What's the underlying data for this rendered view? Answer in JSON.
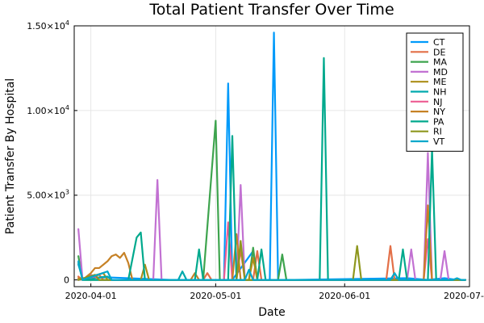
{
  "chart_data": {
    "type": "line",
    "title": "Total Patient Transfer Over Time",
    "xlabel": "Date",
    "ylabel": "Patient Transfer By Hospital",
    "x_start": "2020-03-29",
    "x_end": "2020-06-30",
    "xlim": [
      "2020-03-28",
      "2020-07-01"
    ],
    "ylim": [
      -400,
      15000
    ],
    "x_ticks": [
      {
        "date": "2020-04-01",
        "label": "2020-04-01"
      },
      {
        "date": "2020-05-01",
        "label": "2020-05-01"
      },
      {
        "date": "2020-06-01",
        "label": "2020-06-01"
      },
      {
        "date": "2020-07-01",
        "label": "2020-07-01"
      }
    ],
    "y_ticks": [
      {
        "value": 0,
        "label": "0",
        "has_exp": false
      },
      {
        "value": 5000,
        "label": "5.00×10",
        "exp": "3",
        "has_exp": true
      },
      {
        "value": 10000,
        "label": "1.00×10",
        "exp": "4",
        "has_exp": true
      },
      {
        "value": 15000,
        "label": "1.50×10",
        "exp": "4",
        "has_exp": true
      }
    ],
    "grid": true,
    "legend_position": "top-right",
    "series": [
      {
        "name": "CT",
        "color": "#009AFA",
        "points": [
          [
            "2020-03-29",
            900
          ],
          [
            "2020-03-30",
            100
          ],
          [
            "2020-04-05",
            150
          ],
          [
            "2020-04-20",
            0
          ],
          [
            "2020-05-03",
            0
          ],
          [
            "2020-05-04",
            11600
          ],
          [
            "2020-05-05",
            0
          ],
          [
            "2020-05-10",
            1700
          ],
          [
            "2020-05-11",
            0
          ],
          [
            "2020-05-14",
            0
          ],
          [
            "2020-05-15",
            14600
          ],
          [
            "2020-05-16",
            0
          ],
          [
            "2020-05-20",
            0
          ],
          [
            "2020-06-16",
            100
          ],
          [
            "2020-06-21",
            0
          ],
          [
            "2020-06-25",
            100
          ],
          [
            "2020-06-28",
            0
          ],
          [
            "2020-06-30",
            0
          ]
        ]
      },
      {
        "name": "DE",
        "color": "#E36F47",
        "points": [
          [
            "2020-03-29",
            200
          ],
          [
            "2020-03-30",
            0
          ],
          [
            "2020-04-03",
            300
          ],
          [
            "2020-04-04",
            0
          ],
          [
            "2020-04-28",
            0
          ],
          [
            "2020-04-29",
            400
          ],
          [
            "2020-04-30",
            0
          ],
          [
            "2020-05-06",
            0
          ],
          [
            "2020-05-07",
            1800
          ],
          [
            "2020-05-08",
            0
          ],
          [
            "2020-05-10",
            0
          ],
          [
            "2020-05-11",
            1700
          ],
          [
            "2020-05-12",
            0
          ],
          [
            "2020-06-11",
            0
          ],
          [
            "2020-06-12",
            2000
          ],
          [
            "2020-06-13",
            0
          ],
          [
            "2020-06-30",
            0
          ]
        ]
      },
      {
        "name": "MA",
        "color": "#3EA44E",
        "points": [
          [
            "2020-03-29",
            1400
          ],
          [
            "2020-03-30",
            0
          ],
          [
            "2020-04-25",
            0
          ],
          [
            "2020-04-28",
            0
          ],
          [
            "2020-05-01",
            9400
          ],
          [
            "2020-05-02",
            0
          ],
          [
            "2020-05-09",
            0
          ],
          [
            "2020-05-10",
            1900
          ],
          [
            "2020-05-11",
            0
          ],
          [
            "2020-05-16",
            0
          ],
          [
            "2020-05-17",
            1500
          ],
          [
            "2020-05-18",
            0
          ],
          [
            "2020-06-30",
            0
          ]
        ]
      },
      {
        "name": "MD",
        "color": "#C271D2",
        "points": [
          [
            "2020-03-29",
            3000
          ],
          [
            "2020-03-30",
            0
          ],
          [
            "2020-04-01",
            300
          ],
          [
            "2020-04-02",
            200
          ],
          [
            "2020-04-03",
            0
          ],
          [
            "2020-04-16",
            0
          ],
          [
            "2020-04-17",
            5900
          ],
          [
            "2020-04-18",
            0
          ],
          [
            "2020-05-06",
            0
          ],
          [
            "2020-05-07",
            5600
          ],
          [
            "2020-05-08",
            0
          ],
          [
            "2020-06-16",
            0
          ],
          [
            "2020-06-17",
            1800
          ],
          [
            "2020-06-18",
            0
          ],
          [
            "2020-06-20",
            0
          ],
          [
            "2020-06-21",
            7500
          ],
          [
            "2020-06-22",
            0
          ],
          [
            "2020-06-24",
            0
          ],
          [
            "2020-06-25",
            1700
          ],
          [
            "2020-06-26",
            0
          ],
          [
            "2020-06-30",
            0
          ]
        ]
      },
      {
        "name": "ME",
        "color": "#AC8E18",
        "points": [
          [
            "2020-03-29",
            0
          ],
          [
            "2020-04-04",
            400
          ],
          [
            "2020-04-05",
            0
          ],
          [
            "2020-04-13",
            0
          ],
          [
            "2020-04-14",
            900
          ],
          [
            "2020-04-15",
            0
          ],
          [
            "2020-05-09",
            0
          ],
          [
            "2020-05-10",
            1300
          ],
          [
            "2020-05-11",
            0
          ],
          [
            "2020-06-30",
            0
          ]
        ]
      },
      {
        "name": "NH",
        "color": "#00A9AD",
        "points": [
          [
            "2020-03-29",
            0
          ],
          [
            "2020-04-05",
            200
          ],
          [
            "2020-04-06",
            0
          ],
          [
            "2020-04-22",
            0
          ],
          [
            "2020-04-23",
            500
          ],
          [
            "2020-04-24",
            0
          ],
          [
            "2020-06-30",
            0
          ]
        ]
      },
      {
        "name": "NJ",
        "color": "#ED5D92",
        "points": [
          [
            "2020-03-29",
            0
          ],
          [
            "2020-04-02",
            200
          ],
          [
            "2020-04-03",
            0
          ],
          [
            "2020-05-03",
            0
          ],
          [
            "2020-05-04",
            3400
          ],
          [
            "2020-05-05",
            0
          ],
          [
            "2020-06-20",
            0
          ],
          [
            "2020-06-21",
            2400
          ],
          [
            "2020-06-22",
            0
          ],
          [
            "2020-06-30",
            0
          ]
        ]
      },
      {
        "name": "NY",
        "color": "#C68125",
        "points": [
          [
            "2020-03-29",
            100
          ],
          [
            "2020-03-30",
            0
          ],
          [
            "2020-04-01",
            400
          ],
          [
            "2020-04-02",
            700
          ],
          [
            "2020-04-03",
            700
          ],
          [
            "2020-04-04",
            900
          ],
          [
            "2020-04-05",
            1100
          ],
          [
            "2020-04-06",
            1400
          ],
          [
            "2020-04-07",
            1500
          ],
          [
            "2020-04-08",
            1300
          ],
          [
            "2020-04-09",
            1600
          ],
          [
            "2020-04-10",
            1000
          ],
          [
            "2020-04-11",
            0
          ],
          [
            "2020-04-25",
            0
          ],
          [
            "2020-04-26",
            400
          ],
          [
            "2020-04-27",
            0
          ],
          [
            "2020-05-05",
            0
          ],
          [
            "2020-05-06",
            2700
          ],
          [
            "2020-05-07",
            0
          ],
          [
            "2020-06-20",
            0
          ],
          [
            "2020-06-21",
            4400
          ],
          [
            "2020-06-22",
            0
          ],
          [
            "2020-06-30",
            0
          ]
        ]
      },
      {
        "name": "PA",
        "color": "#00A98D",
        "points": [
          [
            "2020-03-29",
            1000
          ],
          [
            "2020-03-30",
            0
          ],
          [
            "2020-04-10",
            0
          ],
          [
            "2020-04-12",
            2500
          ],
          [
            "2020-04-13",
            2800
          ],
          [
            "2020-04-14",
            0
          ],
          [
            "2020-04-26",
            0
          ],
          [
            "2020-04-27",
            1800
          ],
          [
            "2020-04-28",
            0
          ],
          [
            "2020-05-04",
            0
          ],
          [
            "2020-05-05",
            8500
          ],
          [
            "2020-05-06",
            0
          ],
          [
            "2020-05-11",
            0
          ],
          [
            "2020-05-12",
            1800
          ],
          [
            "2020-05-13",
            0
          ],
          [
            "2020-05-26",
            0
          ],
          [
            "2020-05-27",
            13100
          ],
          [
            "2020-05-28",
            0
          ],
          [
            "2020-06-14",
            0
          ],
          [
            "2020-06-15",
            1800
          ],
          [
            "2020-06-16",
            0
          ],
          [
            "2020-06-21",
            0
          ],
          [
            "2020-06-22",
            7700
          ],
          [
            "2020-06-23",
            0
          ],
          [
            "2020-06-30",
            0
          ]
        ]
      },
      {
        "name": "RI",
        "color": "#8E971E",
        "points": [
          [
            "2020-03-29",
            0
          ],
          [
            "2020-04-02",
            300
          ],
          [
            "2020-04-03",
            0
          ],
          [
            "2020-05-06",
            0
          ],
          [
            "2020-05-07",
            2300
          ],
          [
            "2020-05-08",
            0
          ],
          [
            "2020-06-03",
            0
          ],
          [
            "2020-06-04",
            2000
          ],
          [
            "2020-06-05",
            0
          ],
          [
            "2020-06-30",
            0
          ]
        ]
      },
      {
        "name": "VT",
        "color": "#00A8CB",
        "points": [
          [
            "2020-03-29",
            1100
          ],
          [
            "2020-03-30",
            0
          ],
          [
            "2020-04-05",
            500
          ],
          [
            "2020-04-06",
            0
          ],
          [
            "2020-05-08",
            0
          ],
          [
            "2020-05-09",
            600
          ],
          [
            "2020-05-10",
            0
          ],
          [
            "2020-06-12",
            0
          ],
          [
            "2020-06-13",
            400
          ],
          [
            "2020-06-14",
            0
          ],
          [
            "2020-06-27",
            0
          ],
          [
            "2020-06-28",
            100
          ],
          [
            "2020-06-29",
            0
          ],
          [
            "2020-06-30",
            0
          ]
        ]
      }
    ]
  }
}
